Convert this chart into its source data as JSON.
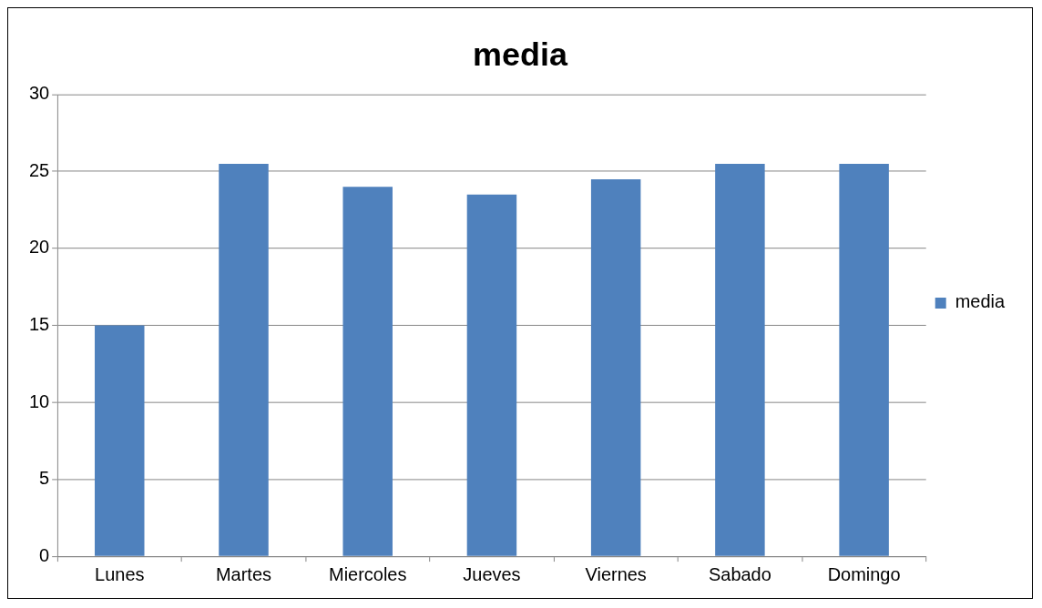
{
  "chart_data": {
    "type": "bar",
    "title": "media",
    "categories": [
      "Lunes",
      "Martes",
      "Miercoles",
      "Jueves",
      "Viernes",
      "Sabado",
      "Domingo"
    ],
    "series": [
      {
        "name": "media",
        "color": "#4f81bd",
        "values": [
          15,
          25.5,
          24,
          23.5,
          24.5,
          25.5,
          25.5
        ]
      }
    ],
    "ylim": [
      0,
      30
    ],
    "yticks": [
      0,
      5,
      10,
      15,
      20,
      25,
      30
    ],
    "grid": "y",
    "legend": "right"
  }
}
